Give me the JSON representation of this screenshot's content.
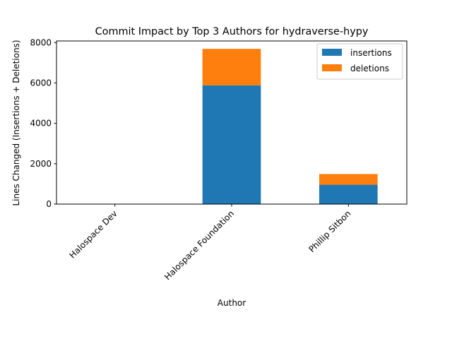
{
  "chart_data": {
    "type": "bar",
    "stacked": true,
    "title": "Commit Impact by Top 3 Authors for hydraverse-hypy",
    "xlabel": "Author",
    "ylabel": "Lines Changed (Insertions + Deletions)",
    "categories": [
      "Halospace Dev",
      "Halospace Foundation",
      "Phillip Sitbon"
    ],
    "series": [
      {
        "name": "insertions",
        "color": "#1f77b4",
        "values": [
          0,
          5880,
          960
        ]
      },
      {
        "name": "deletions",
        "color": "#ff7f0e",
        "values": [
          0,
          1810,
          530
        ]
      }
    ],
    "ylim": [
      0,
      8080
    ],
    "yticks": [
      0,
      2000,
      4000,
      6000,
      8000
    ],
    "grid": false,
    "legend_position": "top-right"
  }
}
